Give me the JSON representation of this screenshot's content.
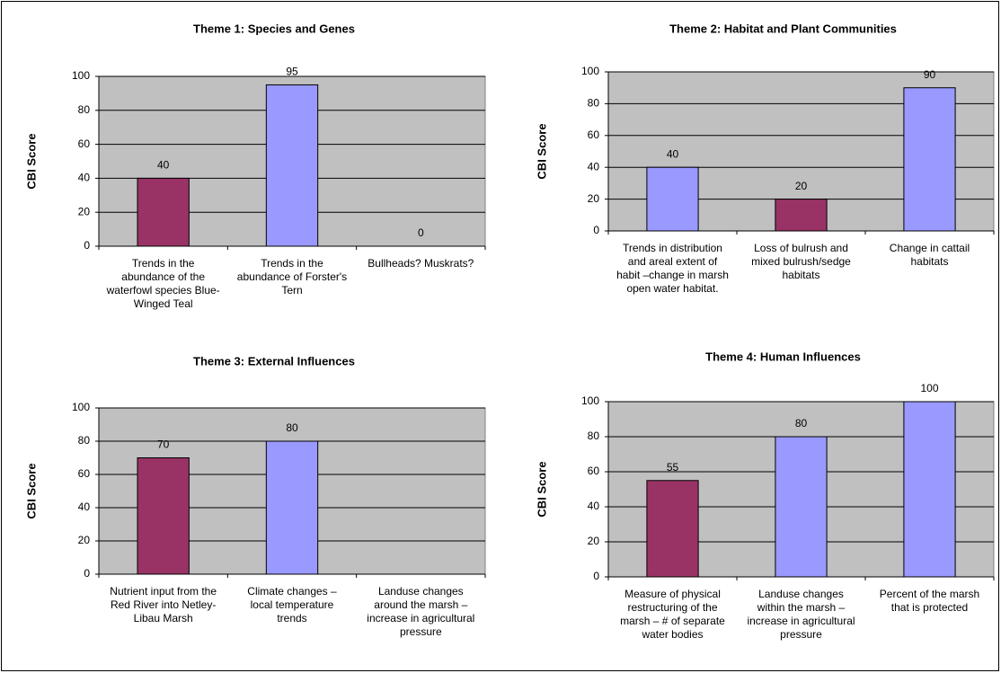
{
  "chart_data": [
    {
      "type": "bar",
      "title": "Theme 1: Species and Genes",
      "ylabel": "CBI Score",
      "categories": [
        "Trends in the abundance of the waterfowl species Blue-Winged Teal",
        "Trends in the abundance of Forster's Tern",
        "Bullheads? Muskrats?"
      ],
      "values": [
        40,
        95,
        0
      ],
      "colors": [
        "#993366",
        "#9999ff",
        "#9999ff"
      ],
      "ylim": [
        0,
        100
      ],
      "yticks": [
        0,
        20,
        40,
        60,
        80,
        100
      ],
      "grid": true
    },
    {
      "type": "bar",
      "title": "Theme 2: Habitat and Plant Communities",
      "ylabel": "CBI Score",
      "categories": [
        "Trends in distribution and areal extent of habit –change in marsh open water habitat.",
        "Loss of bulrush and mixed bulrush/sedge habitats",
        "Change in cattail habitats"
      ],
      "values": [
        40,
        20,
        90
      ],
      "colors": [
        "#9999ff",
        "#993366",
        "#9999ff"
      ],
      "ylim": [
        0,
        100
      ],
      "yticks": [
        0,
        20,
        40,
        60,
        80,
        100
      ],
      "grid": true
    },
    {
      "type": "bar",
      "title": "Theme 3: External Influences",
      "ylabel": "CBI Score",
      "categories": [
        "Nutrient input from the Red River into Netley-Libau Marsh",
        "Climate changes – local temperature trends",
        "Landuse changes around the marsh – increase in agricultural pressure"
      ],
      "values": [
        70,
        80,
        null
      ],
      "colors": [
        "#993366",
        "#9999ff",
        "#9999ff"
      ],
      "ylim": [
        0,
        100
      ],
      "yticks": [
        0,
        20,
        40,
        60,
        80,
        100
      ],
      "grid": true
    },
    {
      "type": "bar",
      "title": "Theme 4: Human Influences",
      "ylabel": "CBI Score",
      "categories": [
        "Measure of physical restructuring of the marsh – # of separate water bodies",
        "Landuse changes within the marsh – increase in agricultural pressure",
        "Percent of the marsh that is protected"
      ],
      "values": [
        55,
        80,
        100
      ],
      "colors": [
        "#993366",
        "#9999ff",
        "#9999ff"
      ],
      "ylim": [
        0,
        100
      ],
      "yticks": [
        0,
        20,
        40,
        60,
        80,
        100
      ],
      "grid": true
    }
  ]
}
